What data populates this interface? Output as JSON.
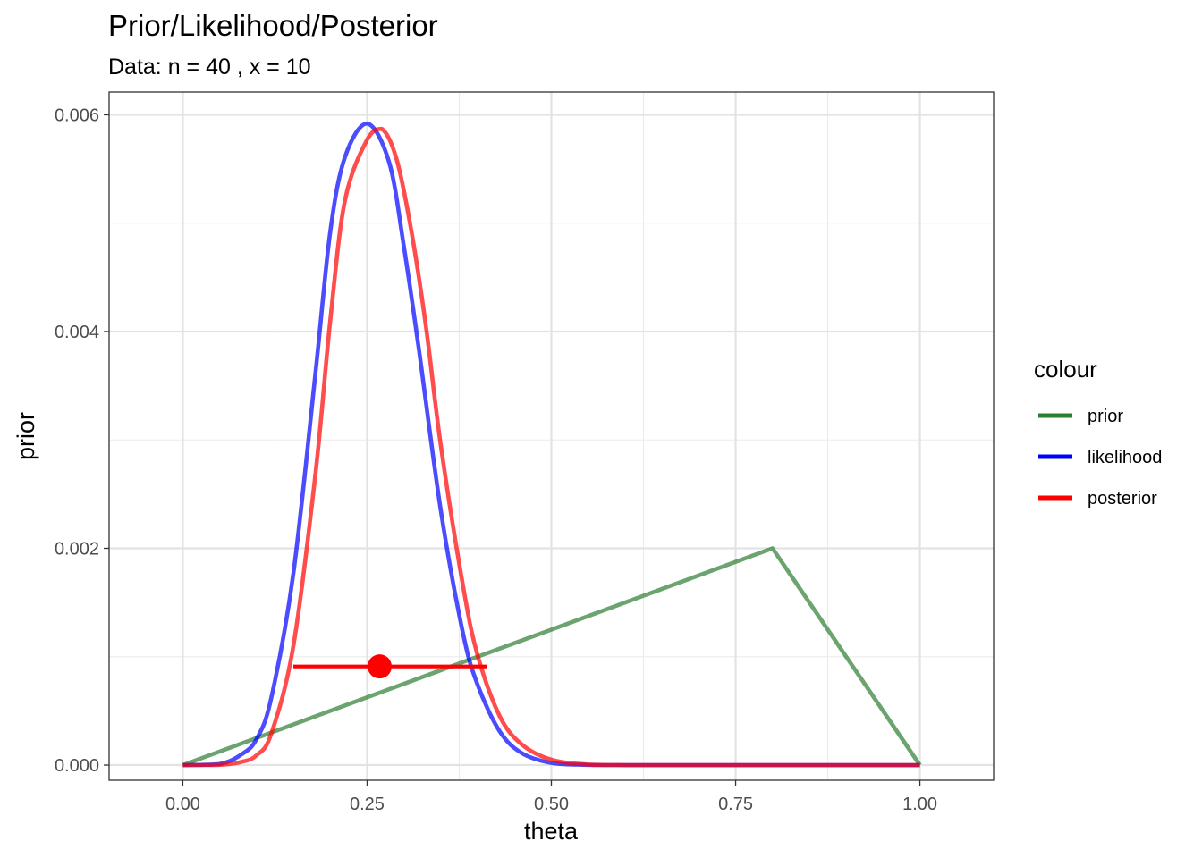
{
  "chart_data": {
    "type": "line",
    "title": "Prior/Likelihood/Posterior",
    "subtitle": "Data: n = 40 , x = 10",
    "xlabel": "theta",
    "ylabel": "prior",
    "xlim": [
      -0.1,
      1.1
    ],
    "ylim": [
      -0.00014,
      0.00621
    ],
    "x_ticks": [
      0,
      0.25,
      0.5,
      0.75,
      1.0
    ],
    "x_tick_labels": [
      "0.00",
      "0.25",
      "0.50",
      "0.75",
      "1.00"
    ],
    "y_ticks": [
      0,
      0.002,
      0.004,
      0.006
    ],
    "y_tick_labels": [
      "0.000",
      "0.002",
      "0.004",
      "0.006"
    ],
    "grid": true,
    "legend": {
      "title": "colour",
      "position": "right",
      "entries": [
        "prior",
        "likelihood",
        "posterior"
      ]
    },
    "series": [
      {
        "name": "prior",
        "color": "#2e7d32",
        "x": [
          0,
          0.8,
          1.0
        ],
        "y": [
          0,
          0.002,
          0
        ]
      },
      {
        "name": "likelihood",
        "color": "#0000ff",
        "x": [
          0,
          0.05,
          0.08,
          0.1,
          0.12,
          0.15,
          0.18,
          0.2,
          0.22,
          0.25,
          0.28,
          0.3,
          0.32,
          0.35,
          0.38,
          0.4,
          0.43,
          0.46,
          0.5,
          0.55,
          0.6,
          0.7,
          0.8,
          0.9,
          1.0
        ],
        "y": [
          0,
          1e-05,
          0.0001,
          0.00024,
          0.00062,
          0.00177,
          0.00362,
          0.00492,
          0.00561,
          0.00592,
          0.00556,
          0.00478,
          0.00385,
          0.00235,
          0.00122,
          0.00074,
          0.00031,
          0.00011,
          2e-05,
          2e-06,
          0,
          0,
          0,
          0,
          0
        ]
      },
      {
        "name": "posterior",
        "color": "#ff0000",
        "x": [
          0,
          0.05,
          0.08,
          0.1,
          0.12,
          0.15,
          0.18,
          0.2,
          0.22,
          0.25,
          0.27,
          0.29,
          0.31,
          0.33,
          0.35,
          0.38,
          0.4,
          0.43,
          0.46,
          0.5,
          0.55,
          0.6,
          0.7,
          0.8,
          0.9,
          1.0
        ],
        "y": [
          0,
          2e-06,
          3e-05,
          9e-05,
          0.00029,
          0.0011,
          0.00269,
          0.0041,
          0.00521,
          0.00577,
          0.00587,
          0.00559,
          0.00493,
          0.00404,
          0.00295,
          0.00166,
          0.00101,
          0.00045,
          0.00019,
          5e-05,
          5e-06,
          0,
          0,
          0,
          0,
          0
        ]
      }
    ],
    "interval": {
      "label": "posterior",
      "color": "#ff0000",
      "lower": 0.15,
      "upper": 0.413,
      "point": 0.267,
      "y": 0.00091
    }
  }
}
